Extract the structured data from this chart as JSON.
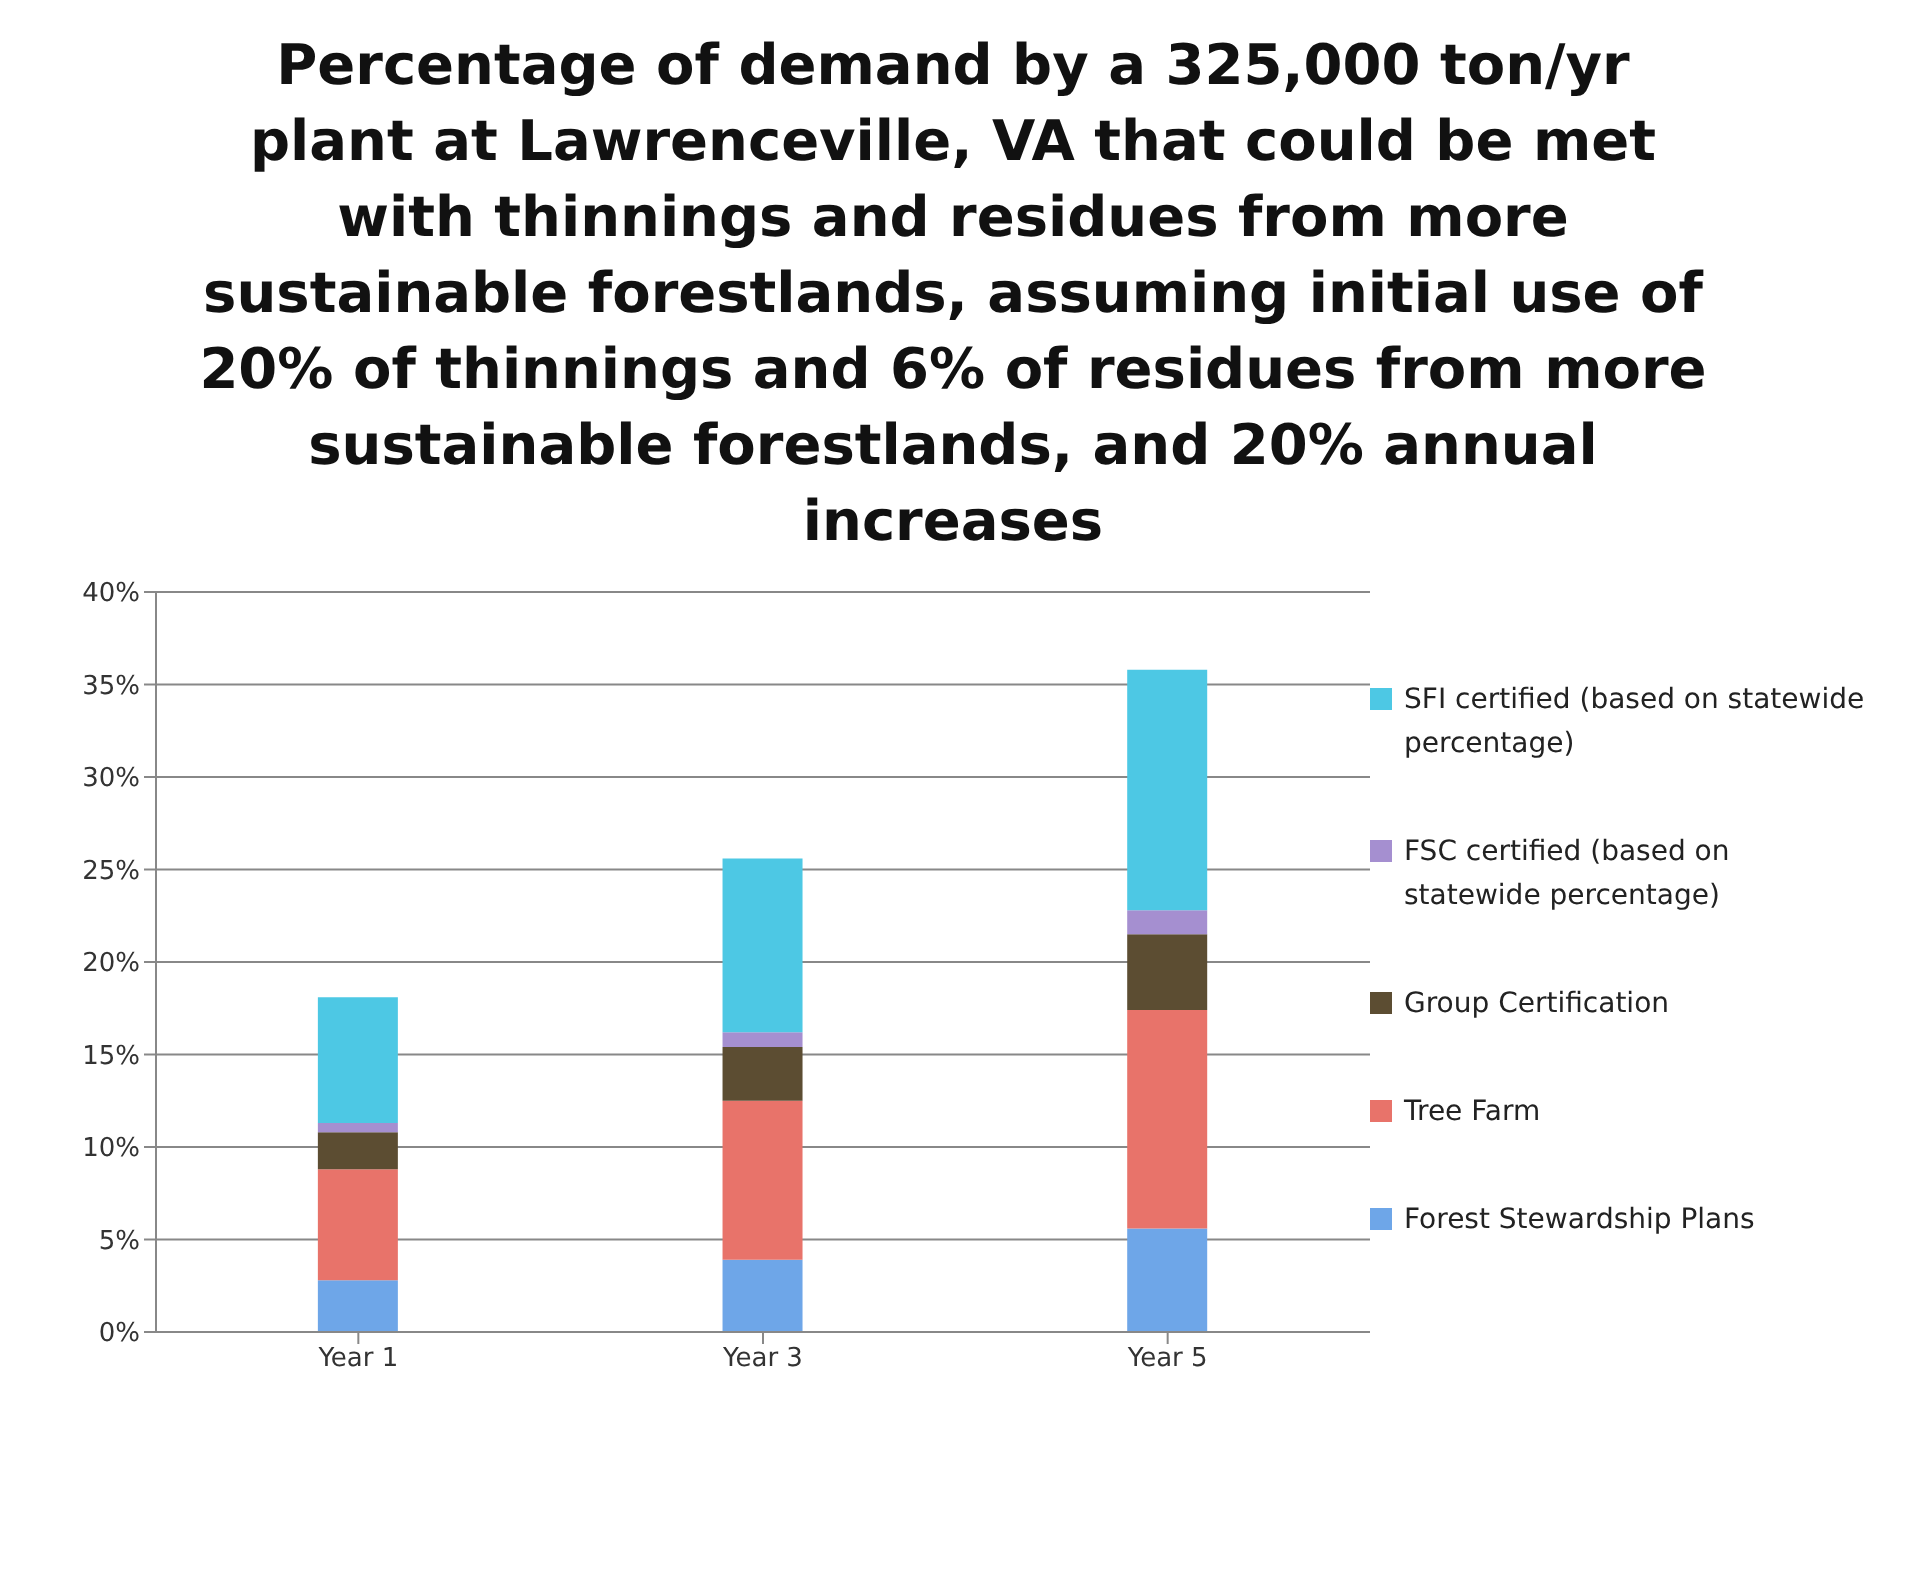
{
  "chart_data": {
    "type": "bar",
    "title": "Percentage of demand by a 325,000 ton/yr plant at Lawrenceville, VA that could be met with thinnings and residues from more sustainable forestlands, assuming initial use of 20% of thinnings and 6% of residues from more sustainable forestlands, and 20% annual increases",
    "categories": [
      "Year 1",
      "Year 3",
      "Year 5"
    ],
    "stacked": true,
    "series": [
      {
        "name": "Forest Stewardship Plans",
        "color": "#6ea6e8",
        "values": [
          2.8,
          3.9,
          5.6
        ]
      },
      {
        "name": "Tree Farm",
        "color": "#e8736a",
        "values": [
          6.0,
          8.6,
          11.8
        ]
      },
      {
        "name": "Group Certification",
        "color": "#5c4d32",
        "values": [
          2.0,
          2.9,
          4.1
        ]
      },
      {
        "name": "FSC certified (based on statewide percentage)",
        "color": "#a58fd0",
        "values": [
          0.5,
          0.8,
          1.3
        ]
      },
      {
        "name": "SFI certified (based on statewide percentage)",
        "color": "#4dc8e4",
        "values": [
          6.8,
          9.4,
          13.0
        ]
      }
    ],
    "ylim": [
      0,
      40
    ],
    "yticks": [
      {
        "value": 0,
        "label": "0%"
      },
      {
        "value": 5,
        "label": "5%"
      },
      {
        "value": 10,
        "label": "10%"
      },
      {
        "value": 15,
        "label": "15%"
      },
      {
        "value": 20,
        "label": "20%"
      },
      {
        "value": 25,
        "label": "25%"
      },
      {
        "value": 30,
        "label": "30%"
      },
      {
        "value": 35,
        "label": "35%"
      },
      {
        "value": 40,
        "label": "40%"
      }
    ],
    "grid": "y",
    "legend": "right"
  }
}
